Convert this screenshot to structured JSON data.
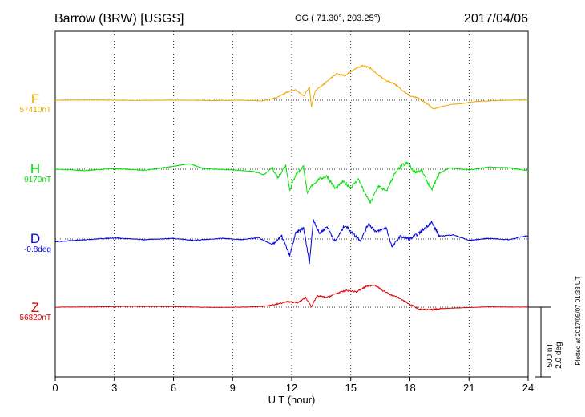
{
  "header": {
    "station": "Barrow (BRW)  [USGS]",
    "coords": "GG ( 71.30°, 203.25°)",
    "date": "2017/04/06"
  },
  "footer": {
    "plotted": "Plotted at 2017/05/07 01:33 UT"
  },
  "scale": {
    "nt": "500 nT",
    "deg": "2.0 deg"
  },
  "chart_data": {
    "type": "line",
    "xlabel": "U T (hour)",
    "xlim": [
      0,
      24
    ],
    "xticks": [
      0,
      3,
      6,
      9,
      12,
      15,
      18,
      21,
      24
    ],
    "grid": "vertical dotted lines at every 3 h; dotted baseline per component",
    "scale_bar": {
      "nT": 500,
      "deg": 2.0
    },
    "series": [
      {
        "name": "F",
        "baseline_label": "57410nT",
        "color": "#f0a800",
        "points": [
          [
            0,
            0
          ],
          [
            2,
            2
          ],
          [
            4,
            -2
          ],
          [
            6,
            1
          ],
          [
            8,
            -3
          ],
          [
            9.5,
            0
          ],
          [
            10.5,
            -5
          ],
          [
            11.3,
            20
          ],
          [
            11.8,
            60
          ],
          [
            12.2,
            75
          ],
          [
            12.6,
            30
          ],
          [
            12.9,
            95
          ],
          [
            13.0,
            -45
          ],
          [
            13.2,
            70
          ],
          [
            13.6,
            110
          ],
          [
            14.0,
            160
          ],
          [
            14.3,
            190
          ],
          [
            14.7,
            175
          ],
          [
            15.1,
            215
          ],
          [
            15.6,
            250
          ],
          [
            16.0,
            230
          ],
          [
            16.4,
            180
          ],
          [
            16.8,
            140
          ],
          [
            17.2,
            120
          ],
          [
            17.6,
            75
          ],
          [
            18.0,
            30
          ],
          [
            18.5,
            10
          ],
          [
            18.8,
            -20
          ],
          [
            19.2,
            -60
          ],
          [
            19.6,
            -45
          ],
          [
            20.1,
            -30
          ],
          [
            20.6,
            -25
          ],
          [
            21.3,
            -10
          ],
          [
            22.0,
            -5
          ],
          [
            23.0,
            0
          ],
          [
            24.0,
            2
          ]
        ]
      },
      {
        "name": "H",
        "baseline_label": "9170nT",
        "color": "#00e000",
        "points": [
          [
            0,
            0
          ],
          [
            1.5,
            -10
          ],
          [
            3,
            5
          ],
          [
            4.5,
            -8
          ],
          [
            6,
            20
          ],
          [
            6.8,
            40
          ],
          [
            7.5,
            5
          ],
          [
            9,
            -5
          ],
          [
            10,
            -15
          ],
          [
            10.6,
            -40
          ],
          [
            11,
            10
          ],
          [
            11.3,
            -60
          ],
          [
            11.7,
            30
          ],
          [
            11.9,
            -150
          ],
          [
            12.2,
            -40
          ],
          [
            12.6,
            20
          ],
          [
            12.8,
            -180
          ],
          [
            13.0,
            -120
          ],
          [
            13.4,
            -70
          ],
          [
            13.8,
            -50
          ],
          [
            14.2,
            -140
          ],
          [
            14.6,
            -90
          ],
          [
            15.0,
            -130
          ],
          [
            15.4,
            -70
          ],
          [
            15.7,
            -170
          ],
          [
            16.0,
            -240
          ],
          [
            16.4,
            -120
          ],
          [
            16.8,
            -160
          ],
          [
            17.2,
            -40
          ],
          [
            17.6,
            30
          ],
          [
            17.9,
            45
          ],
          [
            18.2,
            -20
          ],
          [
            18.6,
            -10
          ],
          [
            19.1,
            -150
          ],
          [
            19.5,
            -30
          ],
          [
            20,
            10
          ],
          [
            21,
            -5
          ],
          [
            22,
            15
          ],
          [
            23,
            10
          ],
          [
            24,
            -10
          ]
        ]
      },
      {
        "name": "D",
        "baseline_label": "-0.8deg",
        "color": "#0000e0",
        "points": [
          [
            0,
            -20
          ],
          [
            1.5,
            -5
          ],
          [
            3,
            8
          ],
          [
            4.5,
            -5
          ],
          [
            6,
            5
          ],
          [
            7,
            -10
          ],
          [
            8.5,
            5
          ],
          [
            9.5,
            -5
          ],
          [
            10.3,
            10
          ],
          [
            11.0,
            -40
          ],
          [
            11.5,
            20
          ],
          [
            11.9,
            -120
          ],
          [
            12.2,
            40
          ],
          [
            12.6,
            80
          ],
          [
            12.9,
            -170
          ],
          [
            13.1,
            140
          ],
          [
            13.4,
            40
          ],
          [
            13.8,
            90
          ],
          [
            14.2,
            -20
          ],
          [
            14.7,
            100
          ],
          [
            15.1,
            40
          ],
          [
            15.5,
            -10
          ],
          [
            15.9,
            110
          ],
          [
            16.3,
            50
          ],
          [
            16.8,
            80
          ],
          [
            17.1,
            -60
          ],
          [
            17.5,
            20
          ],
          [
            18.0,
            0
          ],
          [
            18.5,
            45
          ],
          [
            19.1,
            120
          ],
          [
            19.5,
            20
          ],
          [
            20.2,
            30
          ],
          [
            21,
            -10
          ],
          [
            22,
            5
          ],
          [
            23,
            -5
          ],
          [
            24,
            25
          ]
        ]
      },
      {
        "name": "Z",
        "baseline_label": "56820nT",
        "color": "#e00000",
        "points": [
          [
            0,
            0
          ],
          [
            2,
            2
          ],
          [
            4,
            6
          ],
          [
            6,
            4
          ],
          [
            8,
            -2
          ],
          [
            9.6,
            0
          ],
          [
            10.5,
            5
          ],
          [
            11.2,
            20
          ],
          [
            11.8,
            40
          ],
          [
            12.3,
            30
          ],
          [
            12.7,
            70
          ],
          [
            13.0,
            5
          ],
          [
            13.3,
            80
          ],
          [
            13.8,
            70
          ],
          [
            14.3,
            100
          ],
          [
            14.8,
            120
          ],
          [
            15.3,
            110
          ],
          [
            15.8,
            150
          ],
          [
            16.2,
            160
          ],
          [
            16.6,
            120
          ],
          [
            17.0,
            90
          ],
          [
            17.4,
            70
          ],
          [
            18.0,
            20
          ],
          [
            18.5,
            -15
          ],
          [
            19.0,
            -20
          ],
          [
            19.6,
            -10
          ],
          [
            20.5,
            -5
          ],
          [
            22,
            2
          ],
          [
            24,
            0
          ]
        ]
      }
    ]
  }
}
